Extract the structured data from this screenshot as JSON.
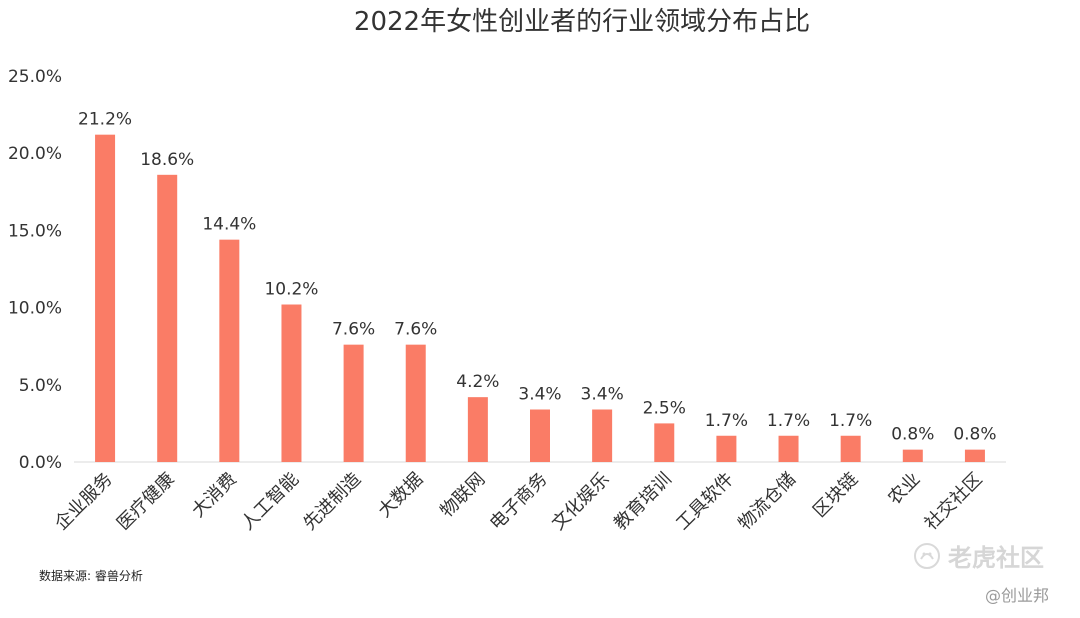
{
  "chart_data": {
    "type": "bar",
    "title": "2022年女性创业者的行业领域分布占比",
    "categories": [
      "企业服务",
      "医疗健康",
      "大消费",
      "人工智能",
      "先进制造",
      "大数据",
      "物联网",
      "电子商务",
      "文化娱乐",
      "教育培训",
      "工具软件",
      "物流仓储",
      "区块链",
      "农业",
      "社交社区"
    ],
    "values": [
      21.2,
      18.6,
      14.4,
      10.2,
      7.6,
      7.6,
      4.2,
      3.4,
      3.4,
      2.5,
      1.7,
      1.7,
      1.7,
      0.8,
      0.8
    ],
    "value_labels": [
      "21.2%",
      "18.6%",
      "14.4%",
      "10.2%",
      "7.6%",
      "7.6%",
      "4.2%",
      "3.4%",
      "3.4%",
      "2.5%",
      "1.7%",
      "1.7%",
      "1.7%",
      "0.8%",
      "0.8%"
    ],
    "yticks": [
      "0.0%",
      "5.0%",
      "10.0%",
      "15.0%",
      "20.0%",
      "25.0%"
    ],
    "ylim": [
      0,
      25
    ],
    "bar_color": "#FA7C66",
    "xlabel": "",
    "ylabel": "",
    "grid": false
  },
  "source": "数据来源: 睿兽分析",
  "watermark": {
    "brand": "老虎社区",
    "credit": "@创业邦",
    "icon": "tiger-logo-icon"
  }
}
